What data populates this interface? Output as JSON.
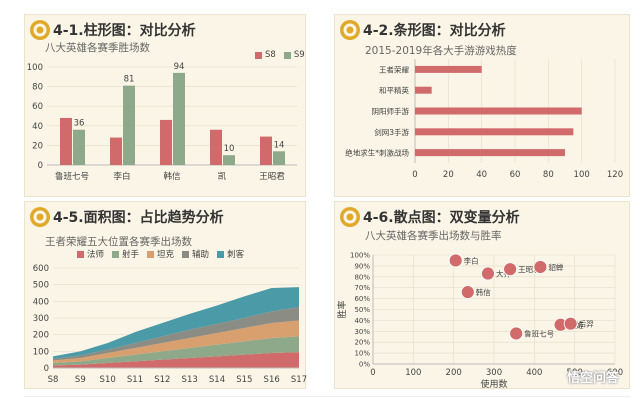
{
  "colors": {
    "red": "#d16b6b",
    "green": "#8ea98a",
    "tan": "#d9a06f",
    "teal": "#4a9aa8",
    "panel_bg": "#faf5e6",
    "logo_gold": "#e0a92a"
  },
  "panels": {
    "bar": {
      "title": "4-1.柱形图：对比分析",
      "subtitle": "八大英雄各赛季胜场数"
    },
    "hbar": {
      "title": "4-2.条形图：对比分析",
      "subtitle": "2015-2019年各大手游游戏热度"
    },
    "area": {
      "title": "4-5.面积图：占比趋势分析",
      "subtitle": "王者荣耀五大位置各赛季出场数"
    },
    "scatter": {
      "title": "4-6.散点图：双变量分析",
      "subtitle": "八大英雄各赛季出场数与胜率"
    }
  },
  "watermark": "悟空问答",
  "chart_data": [
    {
      "type": "bar",
      "categories": [
        "鲁班七号",
        "李白",
        "韩信",
        "凯",
        "王昭君"
      ],
      "series": [
        {
          "name": "S8",
          "values": [
            48,
            28,
            46,
            36,
            29
          ],
          "color": "#d16b6b"
        },
        {
          "name": "S9",
          "values": [
            36,
            81,
            94,
            10,
            14
          ],
          "color": "#8ea98a"
        }
      ],
      "data_labels": {
        "S9": [
          "36",
          "81",
          "94",
          "10",
          "14"
        ]
      },
      "yticks": [
        "0",
        "20",
        "40",
        "60",
        "80",
        "100"
      ],
      "ylim": [
        0,
        100
      ],
      "legend_position": "top-right"
    },
    {
      "type": "bar",
      "orientation": "horizontal",
      "categories": [
        "王者荣耀",
        "和平精英",
        "阴阳师手游",
        "剑网3手游",
        "绝地求生*刺激战场"
      ],
      "values": [
        40,
        10,
        100,
        95,
        90
      ],
      "xticks": [
        "0",
        "20",
        "40",
        "60",
        "80",
        "100",
        "120"
      ],
      "xlim": [
        0,
        120
      ]
    },
    {
      "type": "area",
      "stacked": true,
      "x": [
        "S8",
        "S9",
        "S10",
        "S11",
        "S12",
        "S13",
        "S14",
        "S15",
        "S16",
        "S17"
      ],
      "series": [
        {
          "name": "法师",
          "values": [
            15,
            20,
            30,
            40,
            50,
            60,
            70,
            80,
            90,
            95
          ],
          "color": "#d16b6b"
        },
        {
          "name": "射手",
          "values": [
            15,
            20,
            30,
            40,
            50,
            60,
            70,
            80,
            90,
            95
          ],
          "color": "#8ea98a"
        },
        {
          "name": "坦克",
          "values": [
            15,
            20,
            30,
            40,
            50,
            60,
            70,
            80,
            90,
            95
          ],
          "color": "#d9a06f"
        },
        {
          "name": "辅助",
          "values": [
            10,
            15,
            20,
            30,
            40,
            50,
            55,
            60,
            70,
            80
          ],
          "color": "#8b8c84"
        },
        {
          "name": "刺客",
          "values": [
            15,
            25,
            40,
            65,
            80,
            95,
            110,
            130,
            140,
            120
          ],
          "color": "#4a9aa8"
        }
      ],
      "yticks": [
        "0",
        "100",
        "200",
        "300",
        "400",
        "500",
        "600"
      ],
      "ylim": [
        0,
        600
      ],
      "legend_position": "top"
    },
    {
      "type": "scatter",
      "xlabel": "使用数",
      "ylabel": "胜率",
      "points": [
        {
          "label": "李白",
          "x": 205,
          "y": 95
        },
        {
          "label": "大乔",
          "x": 285,
          "y": 83
        },
        {
          "label": "王昭君",
          "x": 340,
          "y": 87
        },
        {
          "label": "貂蝉",
          "x": 415,
          "y": 89
        },
        {
          "label": "韩信",
          "x": 235,
          "y": 66
        },
        {
          "label": "鲁班七号",
          "x": 355,
          "y": 28
        },
        {
          "label": "甄姬",
          "x": 465,
          "y": 36
        },
        {
          "label": "后羿",
          "x": 490,
          "y": 37
        }
      ],
      "xticks": [
        "0",
        "100",
        "200",
        "300",
        "400",
        "500",
        "600"
      ],
      "yticks": [
        "0%",
        "10%",
        "20%",
        "30%",
        "40%",
        "50%",
        "60%",
        "70%",
        "80%",
        "90%",
        "100%"
      ],
      "xlim": [
        0,
        600
      ],
      "ylim": [
        0,
        100
      ],
      "marker_color": "#d16b6b"
    }
  ]
}
